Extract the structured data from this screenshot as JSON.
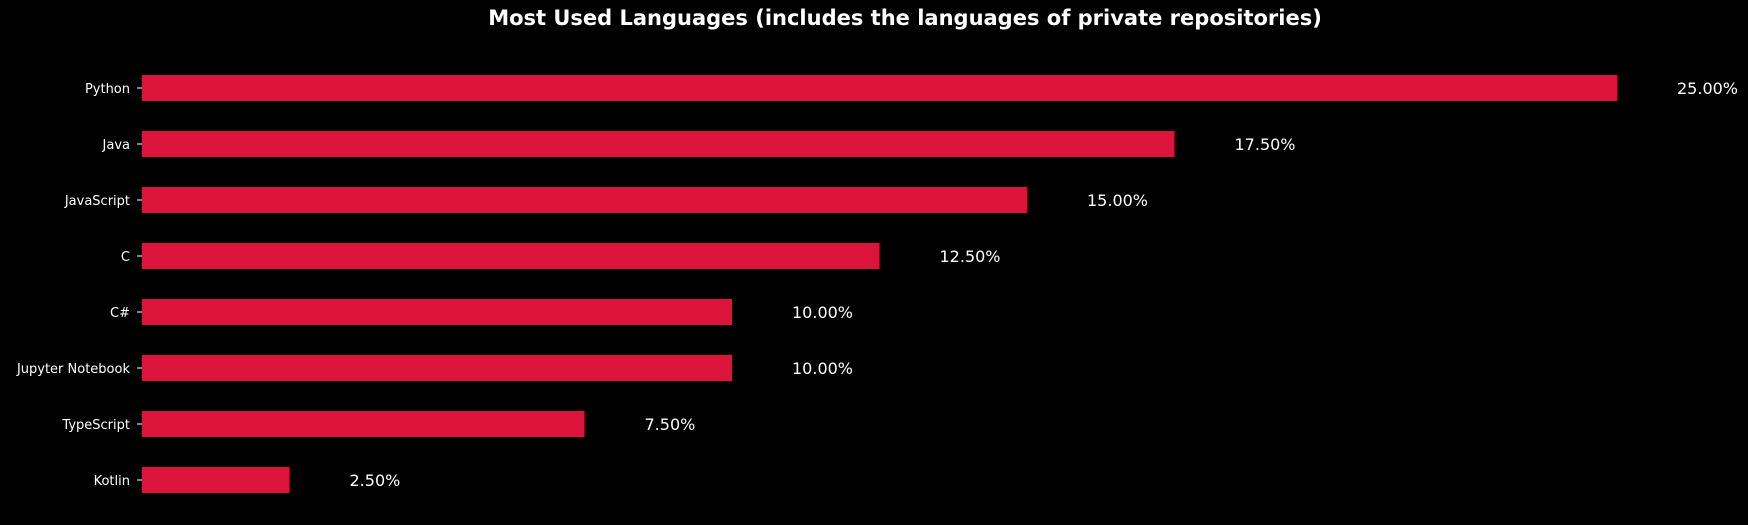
{
  "chart_data": {
    "type": "bar",
    "orientation": "horizontal",
    "title": "Most Used Languages (includes the languages of private repositories)",
    "xlabel": "",
    "ylabel": "",
    "categories": [
      "Python",
      "Java",
      "JavaScript",
      "C",
      "C#",
      "Jupyter Notebook",
      "TypeScript",
      "Kotlin"
    ],
    "values": [
      25.0,
      17.5,
      15.0,
      12.5,
      10.0,
      10.0,
      7.5,
      2.5
    ],
    "value_labels": [
      "25.00%",
      "17.50%",
      "15.00%",
      "12.50%",
      "10.00%",
      "10.00%",
      "7.50%",
      "2.50%"
    ],
    "xlim": [
      0,
      25
    ],
    "grid": false,
    "colors": {
      "bar": "#DC143C",
      "background": "#000000",
      "text": "#ffffff"
    }
  }
}
